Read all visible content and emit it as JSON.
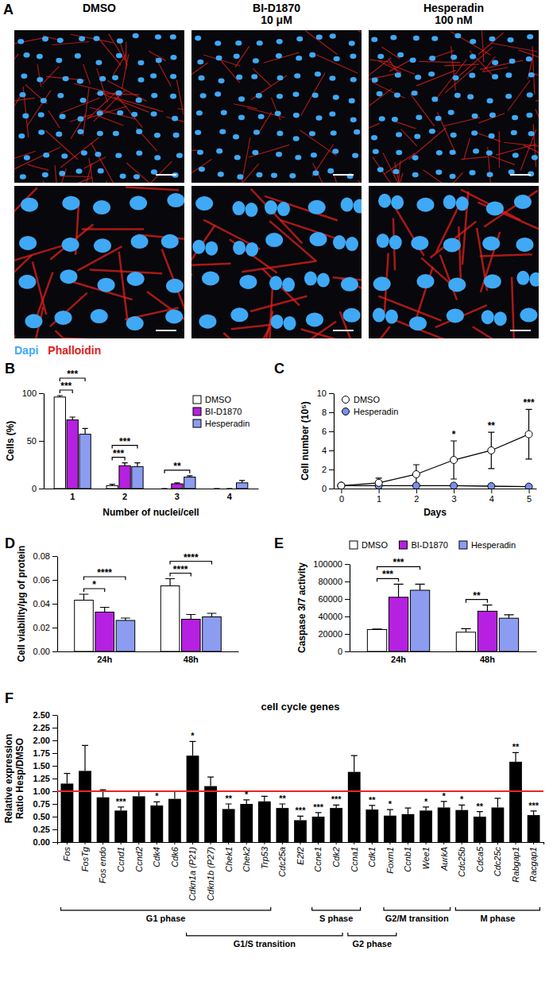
{
  "chart_data": [
    {
      "type": "image",
      "panel": "A",
      "columns": [
        [
          "DMSO"
        ],
        [
          "BI-D1870",
          "10 μM"
        ],
        [
          "Hesperadin",
          "100 nM"
        ]
      ],
      "stains": [
        {
          "name": "Dapi",
          "color": "#3fa9f5"
        },
        {
          "name": "Phalloidin",
          "color": "#e0201a"
        }
      ]
    },
    {
      "type": "bar",
      "panel": "B",
      "x_label": "Number of nuclei/cell",
      "y_label": "Cells (%)",
      "categories": [
        "1",
        "2",
        "3",
        "4"
      ],
      "series": [
        {
          "name": "DMSO",
          "color": "#ffffff",
          "values": [
            96,
            3,
            0,
            0
          ],
          "errors": [
            1.5,
            1.5,
            0,
            0
          ]
        },
        {
          "name": "BI-D1870",
          "color": "#b620e0",
          "values": [
            72,
            24,
            5,
            0
          ],
          "errors": [
            3,
            3,
            1,
            0
          ]
        },
        {
          "name": "Hesperadin",
          "color": "#8c9cf0",
          "values": [
            57,
            23,
            12,
            6
          ],
          "errors": [
            6,
            4,
            1.5,
            2.5
          ]
        }
      ],
      "ylim": [
        0,
        100
      ],
      "yticks": [
        0,
        50,
        100
      ],
      "legend": "top-right",
      "significance": [
        {
          "text": "***",
          "category": "1",
          "between": [
            "DMSO",
            "BI-D1870"
          ]
        },
        {
          "text": "***",
          "category": "1",
          "between": [
            "DMSO",
            "Hesperadin"
          ]
        },
        {
          "text": "***",
          "category": "2",
          "between": [
            "DMSO",
            "BI-D1870"
          ]
        },
        {
          "text": "***",
          "category": "2",
          "between": [
            "DMSO",
            "Hesperadin"
          ]
        },
        {
          "text": "**",
          "category": "3",
          "between": [
            "DMSO",
            "Hesperadin"
          ]
        }
      ]
    },
    {
      "type": "line",
      "panel": "C",
      "x_label": "Days",
      "y_label": "Cell number (10⁵)",
      "x": [
        0,
        1,
        2,
        3,
        4,
        5
      ],
      "series": [
        {
          "name": "DMSO",
          "color": "#ffffff",
          "marker": "circle",
          "values": [
            0.3,
            0.6,
            1.5,
            3.0,
            4.0,
            5.7
          ],
          "errors": [
            0.1,
            0.5,
            1.0,
            2.0,
            1.9,
            2.6
          ]
        },
        {
          "name": "Hesperadin",
          "color": "#7b8fe8",
          "marker": "circle",
          "values": [
            0.3,
            0.3,
            0.3,
            0.3,
            0.25,
            0.2
          ],
          "errors": [
            0.05,
            0.05,
            0.05,
            0.05,
            0.05,
            0.05
          ]
        }
      ],
      "xlim": [
        -0.2,
        5.2
      ],
      "xticks": [
        0,
        1,
        2,
        3,
        4,
        5
      ],
      "ylim": [
        0,
        10
      ],
      "yticks": [
        0,
        2,
        4,
        6,
        8,
        10
      ],
      "legend": "top-left",
      "significance": [
        {
          "text": "*",
          "x": 3
        },
        {
          "text": "**",
          "x": 4
        },
        {
          "text": "***",
          "x": 5
        }
      ]
    },
    {
      "type": "bar",
      "panel": "D",
      "y_label": "Cell viability/μg of protein",
      "categories": [
        "24h",
        "48h"
      ],
      "series": [
        {
          "name": "DMSO",
          "color": "#ffffff",
          "values": [
            0.043,
            0.055
          ],
          "errors": [
            0.005,
            0.006
          ]
        },
        {
          "name": "BI-D1870",
          "color": "#b620e0",
          "values": [
            0.033,
            0.027
          ],
          "errors": [
            0.004,
            0.004
          ]
        },
        {
          "name": "Hesperadin",
          "color": "#8c9cf0",
          "values": [
            0.026,
            0.029
          ],
          "errors": [
            0.002,
            0.003
          ]
        }
      ],
      "ylim": [
        0,
        0.08
      ],
      "yticks": [
        {
          "value": 0,
          "label": "0.00"
        },
        {
          "value": 0.02,
          "label": "0.02"
        },
        {
          "value": 0.04,
          "label": "0.04"
        },
        {
          "value": 0.06,
          "label": "0.06"
        },
        {
          "value": 0.08,
          "label": "0.08"
        }
      ],
      "significance": [
        {
          "text": "*",
          "category": "24h",
          "between": [
            "DMSO",
            "BI-D1870"
          ]
        },
        {
          "text": "****",
          "category": "24h",
          "between": [
            "DMSO",
            "Hesperadin"
          ]
        },
        {
          "text": "****",
          "category": "48h",
          "between": [
            "DMSO",
            "BI-D1870"
          ]
        },
        {
          "text": "****",
          "category": "48h",
          "between": [
            "DMSO",
            "Hesperadin"
          ]
        }
      ]
    },
    {
      "type": "bar",
      "panel": "E",
      "y_label": "Caspase 3/7 activity",
      "categories": [
        "24h",
        "48h"
      ],
      "series": [
        {
          "name": "DMSO",
          "color": "#ffffff",
          "values": [
            25000,
            22000
          ],
          "errors": [
            500,
            4000
          ]
        },
        {
          "name": "BI-D1870",
          "color": "#b620e0",
          "values": [
            62000,
            46000
          ],
          "errors": [
            15000,
            7000
          ]
        },
        {
          "name": "Hesperadin",
          "color": "#8c9cf0",
          "values": [
            70000,
            38000
          ],
          "errors": [
            7000,
            4000
          ]
        }
      ],
      "ylim": [
        0,
        100000
      ],
      "yticks": [
        0,
        20000,
        40000,
        60000,
        80000,
        100000
      ],
      "legend": "top",
      "significance": [
        {
          "text": "***",
          "category": "24h",
          "between": [
            "DMSO",
            "BI-D1870"
          ]
        },
        {
          "text": "***",
          "category": "24h",
          "between": [
            "DMSO",
            "Hesperadin"
          ]
        },
        {
          "text": "**",
          "category": "48h",
          "between": [
            "DMSO",
            "BI-D1870"
          ]
        }
      ]
    },
    {
      "type": "bar",
      "panel": "F",
      "title": "cell cycle genes",
      "y_label": [
        "Relative expression",
        "Ratio Hesp/DMSO"
      ],
      "categories": [
        "Fos",
        "FosTg",
        "Fos endo",
        "Ccnd1",
        "Ccnd2",
        "Cdk4",
        "Cdk6",
        "Cdkn1a (P21)",
        "Cdkn1b (P27)",
        "Chek1",
        "Chek2",
        "Trp53",
        "Cdc25a",
        "E2f2",
        "Ccne1",
        "Cdk2",
        "Ccna1",
        "Cdk1",
        "Foxm1",
        "Ccnb1",
        "Wee1",
        "AurkA",
        "Cdc25b",
        "Cdca5",
        "Cdc25c",
        "Rabgap1",
        "Racgap1"
      ],
      "values": [
        1.15,
        1.4,
        0.88,
        0.62,
        0.9,
        0.72,
        0.85,
        1.7,
        1.1,
        0.65,
        0.75,
        0.8,
        0.67,
        0.43,
        0.5,
        0.67,
        1.38,
        0.64,
        0.52,
        0.55,
        0.62,
        0.68,
        0.63,
        0.5,
        0.68,
        1.58,
        0.53
      ],
      "errors": [
        0.2,
        0.5,
        0.15,
        0.07,
        0.1,
        0.07,
        0.15,
        0.28,
        0.18,
        0.1,
        0.08,
        0.1,
        0.08,
        0.08,
        0.08,
        0.06,
        0.32,
        0.08,
        0.12,
        0.12,
        0.07,
        0.12,
        0.1,
        0.1,
        0.18,
        0.18,
        0.08
      ],
      "significance": [
        null,
        null,
        null,
        "***",
        null,
        "*",
        null,
        "*",
        null,
        "**",
        "*",
        null,
        "**",
        "***",
        "***",
        "***",
        null,
        "**",
        "*",
        null,
        "*",
        "*",
        "*",
        "**",
        null,
        "**",
        "***"
      ],
      "color": "#000000",
      "reference_line": 1,
      "ylim": [
        0,
        2.5
      ],
      "yticks": [
        {
          "value": 0,
          "label": "0.00"
        },
        {
          "value": 0.25,
          "label": "0.25"
        },
        {
          "value": 0.5,
          "label": "0.50"
        },
        {
          "value": 0.75,
          "label": "0.75"
        },
        {
          "value": 1,
          "label": "1.00"
        },
        {
          "value": 1.25,
          "label": "1.25"
        },
        {
          "value": 1.5,
          "label": "1.50"
        },
        {
          "value": 1.75,
          "label": "1.75"
        },
        {
          "value": 2,
          "label": "2.00"
        },
        {
          "value": 2.25,
          "label": "2.25"
        },
        {
          "value": 2.5,
          "label": "2.50"
        }
      ],
      "phases": [
        {
          "label": "G1 phase",
          "from": "Fos",
          "to": "Trp53"
        },
        {
          "label": "G1/S transition",
          "from": "Cdkn1a (P21)",
          "to": "Cdk2"
        },
        {
          "label": "S phase",
          "from": "Ccne1",
          "to": "Ccna1"
        },
        {
          "label": "G2 phase",
          "from": "Ccna1",
          "to": "Foxm1"
        },
        {
          "label": "G2/M transition",
          "from": "Foxm1",
          "to": "AurkA"
        },
        {
          "label": "M phase",
          "from": "Cdc25b",
          "to": "Racgap1"
        }
      ]
    }
  ]
}
